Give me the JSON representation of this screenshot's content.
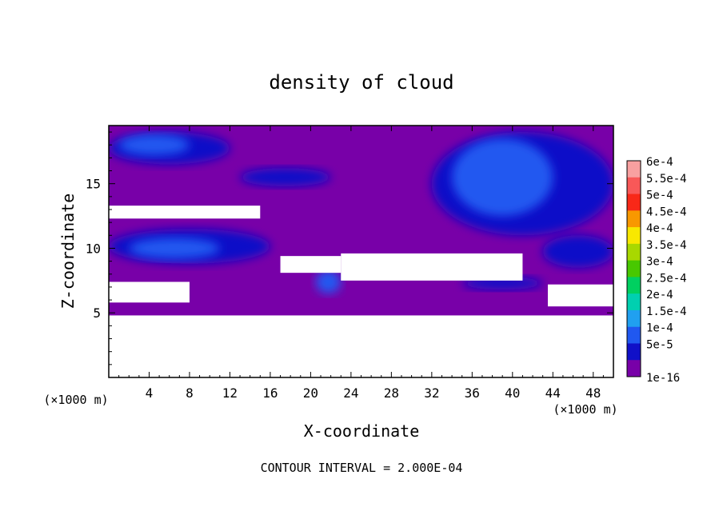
{
  "chart_data": {
    "type": "heatmap",
    "title": "density of cloud",
    "xlabel": "X-coordinate",
    "ylabel": "Z-coordinate",
    "x_unit_left": "(×1000 m)",
    "x_unit_right": "(×1000 m)",
    "footer": "CONTOUR INTERVAL = 2.000E-04",
    "xlim": [
      0,
      50
    ],
    "ylim": [
      0,
      19.5
    ],
    "x_ticks": [
      4,
      8,
      12,
      16,
      20,
      24,
      28,
      32,
      36,
      40,
      44,
      48
    ],
    "y_ticks": [
      5,
      10,
      15
    ],
    "legend_position": "right",
    "colorbar": [
      {
        "label": "6e-4",
        "color": "#f8a0a0"
      },
      {
        "label": "5.5e-4",
        "color": "#f85858"
      },
      {
        "label": "5e-4",
        "color": "#f82818"
      },
      {
        "label": "4.5e-4",
        "color": "#f89800"
      },
      {
        "label": "4e-4",
        "color": "#f8e800"
      },
      {
        "label": "3.5e-4",
        "color": "#a8d800"
      },
      {
        "label": "3e-4",
        "color": "#48c800"
      },
      {
        "label": "2.5e-4",
        "color": "#00d060"
      },
      {
        "label": "2e-4",
        "color": "#00d0b0"
      },
      {
        "label": "1.5e-4",
        "color": "#20a0f0"
      },
      {
        "label": "1e-4",
        "color": "#2058f0"
      },
      {
        "label": "5e-5",
        "color": "#1010c8"
      },
      {
        "label": "1e-16",
        "color": "#7800a8"
      }
    ],
    "background_color": "#7800a8",
    "cloud_regions": [
      {
        "x": [
          0,
          50
        ],
        "z": [
          4.8,
          19.5
        ],
        "level": "1e-16"
      },
      {
        "x": [
          0,
          12
        ],
        "z": [
          16.5,
          19
        ],
        "level": "5e-5"
      },
      {
        "x": [
          1,
          8
        ],
        "z": [
          17.2,
          18.8
        ],
        "level": "1e-4"
      },
      {
        "x": [
          13,
          22
        ],
        "z": [
          14.8,
          16.2
        ],
        "level": "5e-5"
      },
      {
        "x": [
          0,
          16
        ],
        "z": [
          8.8,
          11.5
        ],
        "level": "5e-5"
      },
      {
        "x": [
          2,
          11
        ],
        "z": [
          9.2,
          10.8
        ],
        "level": "1e-4"
      },
      {
        "x": [
          20.5,
          23
        ],
        "z": [
          6.5,
          8.3
        ],
        "level": "1e-4"
      },
      {
        "x": [
          32,
          50
        ],
        "z": [
          11,
          19
        ],
        "level": "5e-5"
      },
      {
        "x": [
          34,
          44
        ],
        "z": [
          12.5,
          18.5
        ],
        "level": "1e-4"
      },
      {
        "x": [
          43,
          50
        ],
        "z": [
          8.5,
          11
        ],
        "level": "5e-5"
      },
      {
        "x": [
          35,
          43
        ],
        "z": [
          6.8,
          7.8
        ],
        "level": "5e-5"
      }
    ],
    "empty_regions_zero": [
      {
        "x": [
          0,
          50
        ],
        "z": [
          0,
          4.8
        ]
      },
      {
        "x": [
          0,
          15
        ],
        "z": [
          12.3,
          13.3
        ]
      },
      {
        "x": [
          0,
          8
        ],
        "z": [
          5.8,
          7.4
        ]
      },
      {
        "x": [
          17,
          23
        ],
        "z": [
          8.1,
          9.4
        ]
      },
      {
        "x": [
          23,
          41
        ],
        "z": [
          7.5,
          9.6
        ]
      },
      {
        "x": [
          43.5,
          50
        ],
        "z": [
          5.5,
          7.2
        ]
      }
    ]
  }
}
